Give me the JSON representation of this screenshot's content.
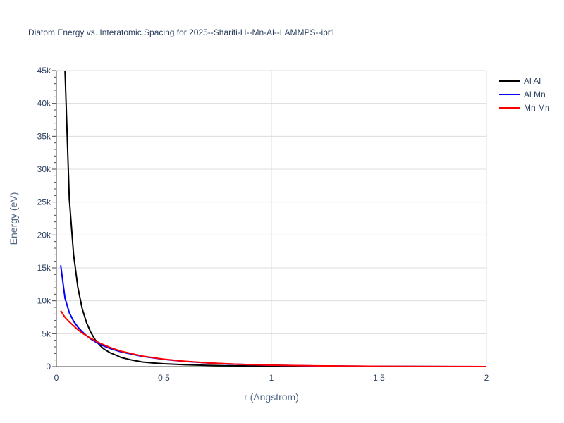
{
  "chart_data": {
    "type": "line",
    "title": "Diatom Energy vs. Interatomic Spacing for 2025--Sharifi-H--Mn-Al--LAMMPS--ipr1",
    "xlabel": "r (Angstrom)",
    "ylabel": "Energy (eV)",
    "xlim": [
      0,
      2
    ],
    "ylim": [
      0,
      45000
    ],
    "x_ticks": [
      {
        "value": 0,
        "label": "0"
      },
      {
        "value": 0.5,
        "label": "0.5"
      },
      {
        "value": 1,
        "label": "1"
      },
      {
        "value": 1.5,
        "label": "1.5"
      },
      {
        "value": 2,
        "label": "2"
      }
    ],
    "y_ticks": [
      {
        "value": 0,
        "label": "0"
      },
      {
        "value": 5000,
        "label": "5k"
      },
      {
        "value": 10000,
        "label": "10k"
      },
      {
        "value": 15000,
        "label": "15k"
      },
      {
        "value": 20000,
        "label": "20k"
      },
      {
        "value": 25000,
        "label": "25k"
      },
      {
        "value": 30000,
        "label": "30k"
      },
      {
        "value": 35000,
        "label": "35k"
      },
      {
        "value": 40000,
        "label": "40k"
      },
      {
        "value": 45000,
        "label": "45k"
      }
    ],
    "grid": true,
    "legend_position": "top-right",
    "series": [
      {
        "name": "Al Al",
        "color": "#000000",
        "x": [
          0.04,
          0.06,
          0.08,
          0.1,
          0.12,
          0.14,
          0.16,
          0.18,
          0.2,
          0.22,
          0.25,
          0.28,
          0.3,
          0.35,
          0.4,
          0.45,
          0.5,
          0.6,
          0.7,
          0.8,
          0.9,
          1.0,
          1.2,
          1.5,
          2.0
        ],
        "y": [
          45000,
          25500,
          17000,
          12000,
          8800,
          6700,
          5200,
          4100,
          3300,
          2700,
          2100,
          1700,
          1400,
          1000,
          700,
          550,
          430,
          280,
          190,
          130,
          90,
          60,
          30,
          10,
          0
        ]
      },
      {
        "name": "Al Mn",
        "color": "#0000ff",
        "x": [
          0.02,
          0.04,
          0.06,
          0.08,
          0.1,
          0.12,
          0.14,
          0.16,
          0.18,
          0.2,
          0.25,
          0.3,
          0.4,
          0.5,
          0.6,
          0.7,
          0.8,
          0.9,
          1.0,
          1.2,
          1.5,
          2.0
        ],
        "y": [
          15400,
          10400,
          8200,
          6900,
          6000,
          5300,
          4700,
          4200,
          3800,
          3400,
          2750,
          2250,
          1550,
          1100,
          780,
          560,
          400,
          290,
          210,
          110,
          40,
          0
        ]
      },
      {
        "name": "Mn Mn",
        "color": "#ff0000",
        "x": [
          0.02,
          0.04,
          0.06,
          0.08,
          0.1,
          0.12,
          0.14,
          0.16,
          0.18,
          0.2,
          0.25,
          0.3,
          0.4,
          0.5,
          0.6,
          0.7,
          0.8,
          0.9,
          1.0,
          1.2,
          1.5,
          2.0
        ],
        "y": [
          8500,
          7500,
          6800,
          6200,
          5600,
          5100,
          4700,
          4300,
          3950,
          3600,
          2900,
          2350,
          1600,
          1130,
          800,
          570,
          410,
          300,
          220,
          120,
          45,
          0
        ]
      }
    ]
  }
}
